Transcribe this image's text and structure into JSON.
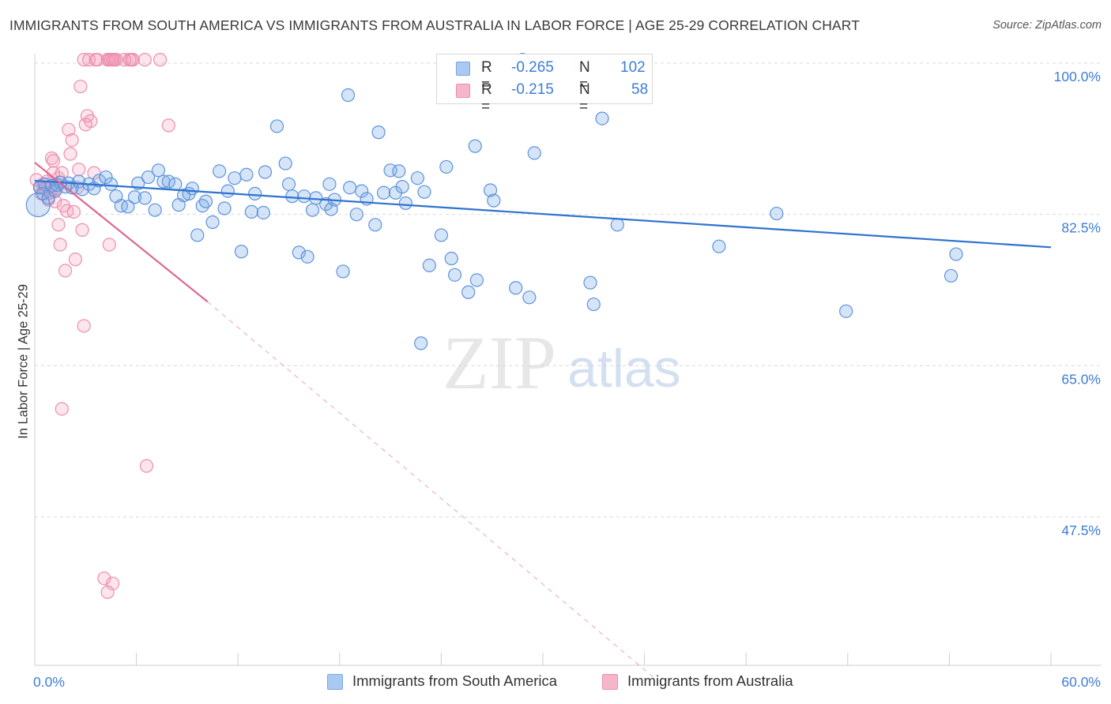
{
  "title": "IMMIGRANTS FROM SOUTH AMERICA VS IMMIGRANTS FROM AUSTRALIA IN LABOR FORCE | AGE 25-29 CORRELATION CHART",
  "source": "Source: ZipAtlas.com",
  "watermark": {
    "zip": "ZIP",
    "atlas": "atlas"
  },
  "legend": {
    "rows": [
      {
        "r_label": "R =",
        "r_value": "-0.265",
        "n_label": "N =",
        "n_value": "102",
        "color": "#a9c8f2"
      },
      {
        "r_label": "R =",
        "r_value": "-0.215",
        "n_label": "N =",
        "n_value": "58",
        "color": "#f6b6c9"
      }
    ]
  },
  "bottom_legend": [
    {
      "label": "Immigrants from South America",
      "color": "#a9c8f2"
    },
    {
      "label": "Immigrants from Australia",
      "color": "#f6b6c9"
    }
  ],
  "colors": {
    "blue_fill": "rgba(120,165,230,0.30)",
    "blue_stroke": "#5b93dd",
    "blue_line": "#2f72cf",
    "pink_fill": "rgba(245,150,180,0.25)",
    "pink_stroke": "#ec8fae",
    "pink_line": "#e0648e",
    "grid": "#d9d9d9",
    "tick_label": "#3d7dd8"
  },
  "chart_data": {
    "type": "scatter",
    "title": "IMMIGRANTS FROM SOUTH AMERICA VS IMMIGRANTS FROM AUSTRALIA IN LABOR FORCE | AGE 25-29 CORRELATION CHART",
    "xlabel": "",
    "ylabel": "In Labor Force | Age 25-29",
    "xlim": [
      0,
      60
    ],
    "ylim": [
      28.5,
      102
    ],
    "x_tick_labels": [
      "0.0%",
      "60.0%"
    ],
    "y_ticks": [
      47.5,
      65.0,
      82.5,
      100.0
    ],
    "y_tick_labels": [
      "47.5%",
      "65.0%",
      "82.5%",
      "100.0%"
    ],
    "grid": true,
    "legend_placement": "top-center",
    "series": [
      {
        "name": "Immigrants from South America",
        "trend": {
          "x": [
            0,
            60
          ],
          "y": [
            86.4,
            78.7
          ]
        },
        "points": [
          [
            0.3,
            85.6
          ],
          [
            0.6,
            86.0
          ],
          [
            0.8,
            84.4
          ],
          [
            1.0,
            85.8
          ],
          [
            1.2,
            85.2
          ],
          [
            1.3,
            85.9
          ],
          [
            1.5,
            86.2
          ],
          [
            1.8,
            85.7
          ],
          [
            2.0,
            86.1
          ],
          [
            2.2,
            85.6
          ],
          [
            2.6,
            86.3
          ],
          [
            2.8,
            85.4
          ],
          [
            3.2,
            86.0
          ],
          [
            3.5,
            85.5
          ],
          [
            3.8,
            86.4
          ],
          [
            4.2,
            86.8
          ],
          [
            4.5,
            86.0
          ],
          [
            4.8,
            84.6
          ],
          [
            5.1,
            83.5
          ],
          [
            5.5,
            83.4
          ],
          [
            5.9,
            84.5
          ],
          [
            6.1,
            86.1
          ],
          [
            6.5,
            84.4
          ],
          [
            6.7,
            86.8
          ],
          [
            7.1,
            83.0
          ],
          [
            7.3,
            87.6
          ],
          [
            7.6,
            86.3
          ],
          [
            7.9,
            86.3
          ],
          [
            8.3,
            86.0
          ],
          [
            8.5,
            83.6
          ],
          [
            8.8,
            84.7
          ],
          [
            9.1,
            84.9
          ],
          [
            9.3,
            85.5
          ],
          [
            9.6,
            80.1
          ],
          [
            9.9,
            83.5
          ],
          [
            10.1,
            84.0
          ],
          [
            10.5,
            81.6
          ],
          [
            10.9,
            87.5
          ],
          [
            11.2,
            83.2
          ],
          [
            11.4,
            85.2
          ],
          [
            11.8,
            86.7
          ],
          [
            12.2,
            78.2
          ],
          [
            12.5,
            87.1
          ],
          [
            12.8,
            82.8
          ],
          [
            13.0,
            84.9
          ],
          [
            13.5,
            82.7
          ],
          [
            13.6,
            87.4
          ],
          [
            14.3,
            92.7
          ],
          [
            14.8,
            88.4
          ],
          [
            15.0,
            86.0
          ],
          [
            15.2,
            84.6
          ],
          [
            15.6,
            78.1
          ],
          [
            15.9,
            84.6
          ],
          [
            16.1,
            77.6
          ],
          [
            16.4,
            83.0
          ],
          [
            16.6,
            84.4
          ],
          [
            17.2,
            83.7
          ],
          [
            17.4,
            86.0
          ],
          [
            17.5,
            83.1
          ],
          [
            17.7,
            84.2
          ],
          [
            18.2,
            75.9
          ],
          [
            18.5,
            96.3
          ],
          [
            18.6,
            85.6
          ],
          [
            19.0,
            82.5
          ],
          [
            19.3,
            85.2
          ],
          [
            19.6,
            84.3
          ],
          [
            20.1,
            81.3
          ],
          [
            20.6,
            85.0
          ],
          [
            20.3,
            92.0
          ],
          [
            21.0,
            87.6
          ],
          [
            21.3,
            85.0
          ],
          [
            21.5,
            87.5
          ],
          [
            21.7,
            85.7
          ],
          [
            21.9,
            83.8
          ],
          [
            22.6,
            86.7
          ],
          [
            22.8,
            67.6
          ],
          [
            23.0,
            85.1
          ],
          [
            23.3,
            76.6
          ],
          [
            24.0,
            80.1
          ],
          [
            24.3,
            88.0
          ],
          [
            24.6,
            77.4
          ],
          [
            24.8,
            75.5
          ],
          [
            25.6,
            73.5
          ],
          [
            26.0,
            90.4
          ],
          [
            26.1,
            74.9
          ],
          [
            26.9,
            85.3
          ],
          [
            27.1,
            84.1
          ],
          [
            28.4,
            74.0
          ],
          [
            28.8,
            100.4
          ],
          [
            29.2,
            72.9
          ],
          [
            29.5,
            89.6
          ],
          [
            32.1,
            100.1
          ],
          [
            32.8,
            74.6
          ],
          [
            33.0,
            72.1
          ],
          [
            33.5,
            93.6
          ],
          [
            34.4,
            81.3
          ],
          [
            40.4,
            78.8
          ],
          [
            43.8,
            82.6
          ],
          [
            47.9,
            71.3
          ],
          [
            54.1,
            75.4
          ],
          [
            54.4,
            77.9
          ],
          [
            0.5,
            84.9
          ]
        ]
      },
      {
        "name": "Immigrants from Australia",
        "trend": {
          "x": [
            0,
            10.2
          ],
          "y": [
            88.5,
            72.4
          ]
        },
        "trend_dashed": {
          "x": [
            10.2,
            36.5
          ],
          "y": [
            72.4,
            29.0
          ]
        },
        "points": [
          [
            0.1,
            86.5
          ],
          [
            0.3,
            85.7
          ],
          [
            0.4,
            84.9
          ],
          [
            0.5,
            86.0
          ],
          [
            0.6,
            85.5
          ],
          [
            0.7,
            86.3
          ],
          [
            0.8,
            84.2
          ],
          [
            0.9,
            85.0
          ],
          [
            1.0,
            89.0
          ],
          [
            1.1,
            88.7
          ],
          [
            1.1,
            87.3
          ],
          [
            1.2,
            85.6
          ],
          [
            1.2,
            84.0
          ],
          [
            1.3,
            85.5
          ],
          [
            1.4,
            86.7
          ],
          [
            1.4,
            81.3
          ],
          [
            1.5,
            79.0
          ],
          [
            1.6,
            87.3
          ],
          [
            1.7,
            83.5
          ],
          [
            1.8,
            76.0
          ],
          [
            1.9,
            82.9
          ],
          [
            2.0,
            92.3
          ],
          [
            2.1,
            89.5
          ],
          [
            2.2,
            91.1
          ],
          [
            2.3,
            82.8
          ],
          [
            2.4,
            77.3
          ],
          [
            2.5,
            85.6
          ],
          [
            2.6,
            87.7
          ],
          [
            2.7,
            97.3
          ],
          [
            2.8,
            80.7
          ],
          [
            2.9,
            100.4
          ],
          [
            3.0,
            92.9
          ],
          [
            3.1,
            93.9
          ],
          [
            3.2,
            100.4
          ],
          [
            3.3,
            93.3
          ],
          [
            3.5,
            87.3
          ],
          [
            3.6,
            100.4
          ],
          [
            3.7,
            100.4
          ],
          [
            4.3,
            100.4
          ],
          [
            4.4,
            100.4
          ],
          [
            4.5,
            100.4
          ],
          [
            4.6,
            100.4
          ],
          [
            4.7,
            100.4
          ],
          [
            4.8,
            100.4
          ],
          [
            5.3,
            100.4
          ],
          [
            5.6,
            100.4
          ],
          [
            5.7,
            100.4
          ],
          [
            5.8,
            100.4
          ],
          [
            6.5,
            100.4
          ],
          [
            7.4,
            100.4
          ],
          [
            7.9,
            92.8
          ],
          [
            1.6,
            60.0
          ],
          [
            2.9,
            69.6
          ],
          [
            4.4,
            79.0
          ],
          [
            4.1,
            40.4
          ],
          [
            4.6,
            39.8
          ],
          [
            4.3,
            38.8
          ],
          [
            6.6,
            53.4
          ]
        ]
      }
    ]
  }
}
